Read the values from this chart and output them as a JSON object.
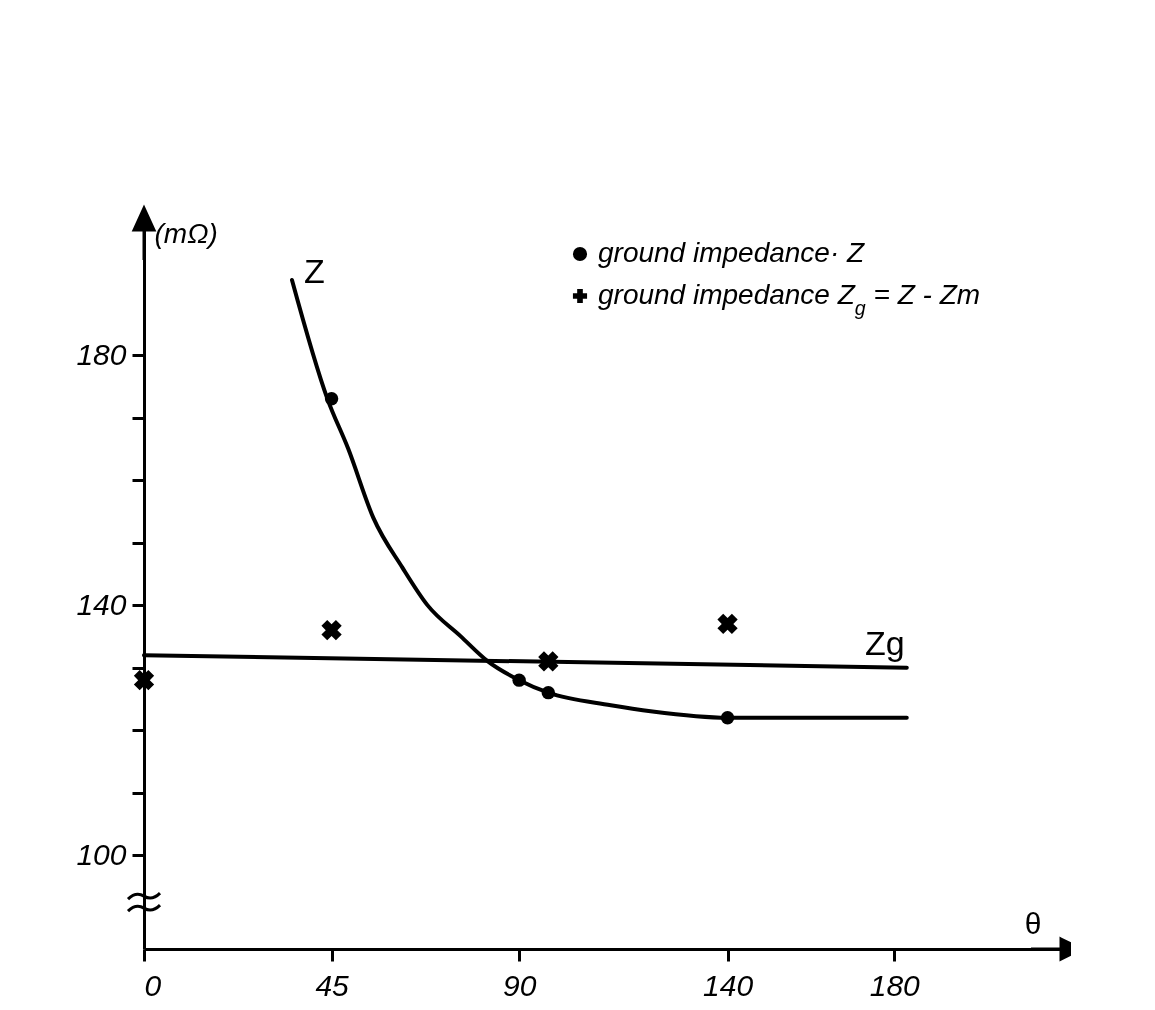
{
  "chart_data": {
    "type": "scatter",
    "xlabel": "θ",
    "ylabel": "(mΩ)",
    "xlim": [
      0,
      220
    ],
    "ylim": [
      85,
      200
    ],
    "xticks": [
      0,
      45,
      90,
      140,
      180
    ],
    "yticks": [
      100,
      {
        "value": 110,
        "label": null
      },
      {
        "value": 120,
        "label": null
      },
      {
        "value": 130,
        "label": null
      },
      140,
      {
        "value": 150,
        "label": null
      },
      {
        "value": 160,
        "label": null
      },
      {
        "value": 170,
        "label": null
      },
      180
    ],
    "grid": false,
    "legend": "top right",
    "series": [
      {
        "name": "ground impedance· Z",
        "type": "scatter",
        "marker": "circle",
        "color": "#000000",
        "x": [
          45,
          90,
          97,
          140
        ],
        "values": [
          173,
          128,
          126,
          122
        ]
      },
      {
        "name": "ground impedance Z$_{g}$ = Z - Zm",
        "type": "scatter",
        "marker": "cross",
        "color": "#000000",
        "x": [
          0,
          45,
          97,
          140
        ],
        "values": [
          128,
          136,
          131,
          137
        ]
      },
      {
        "name": "Z",
        "type": "line",
        "marker": "none",
        "line_style": "solid",
        "color": "#000000",
        "x": [
          35.5,
          44,
          49,
          55,
          62,
          68,
          76,
          82.5,
          90,
          97,
          112,
          122,
          140,
          160,
          183
        ],
        "values": [
          192,
          173,
          165,
          154,
          146,
          140,
          135,
          131,
          128,
          126,
          124,
          123,
          122,
          122,
          122
        ]
      },
      {
        "name": "Zg",
        "type": "line",
        "marker": "none",
        "line_style": "solid",
        "color": "#000000",
        "x": [
          0,
          183
        ],
        "values": [
          132,
          130
        ]
      }
    ]
  }
}
